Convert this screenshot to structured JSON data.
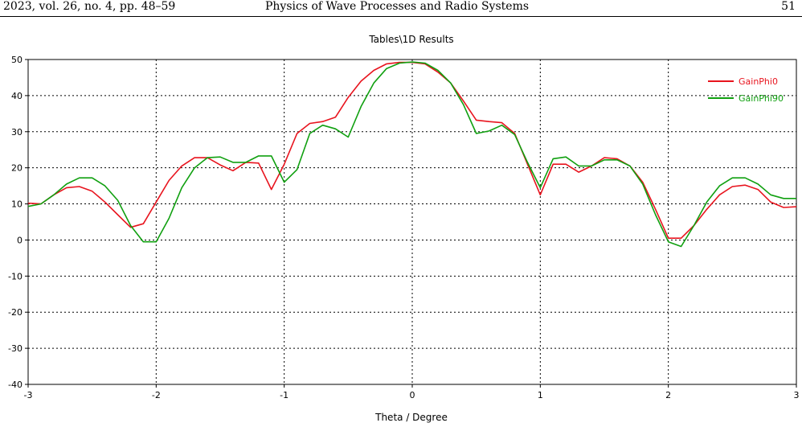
{
  "header": {
    "left": "2023, vol. 26, no. 4, pp. 48–59",
    "center": "Physics of Wave Processes and Radio Systems",
    "right": "51"
  },
  "chart_data": {
    "type": "line",
    "title": "Tables\\1D Results",
    "xlabel": "Theta / Degree",
    "ylabel": "",
    "xlim": [
      -3,
      3
    ],
    "ylim": [
      -40,
      50
    ],
    "xticks": [
      -3,
      -2,
      -1,
      0,
      1,
      2,
      3
    ],
    "yticks": [
      50,
      40,
      30,
      20,
      10,
      0,
      -10,
      -20,
      -30,
      -40
    ],
    "grid": true,
    "legend_position": "top-right",
    "series": [
      {
        "name": "GainPhi0",
        "color": "#e8141e",
        "x": [
          -3,
          -2.9,
          -2.8,
          -2.7,
          -2.6,
          -2.5,
          -2.4,
          -2.3,
          -2.2,
          -2.1,
          -2,
          -1.9,
          -1.8,
          -1.7,
          -1.6,
          -1.5,
          -1.4,
          -1.3,
          -1.2,
          -1.1,
          -1,
          -0.9,
          -0.8,
          -0.7,
          -0.6,
          -0.5,
          -0.4,
          -0.3,
          -0.2,
          -0.1,
          0,
          0.1,
          0.2,
          0.3,
          0.4,
          0.5,
          0.6,
          0.7,
          0.8,
          0.9,
          1,
          1.1,
          1.2,
          1.3,
          1.4,
          1.5,
          1.6,
          1.7,
          1.8,
          1.9,
          2,
          2.1,
          2.2,
          2.3,
          2.4,
          2.5,
          2.6,
          2.7,
          2.8,
          2.9,
          3
        ],
        "values": [
          10.2,
          10,
          12.5,
          14.5,
          14.8,
          13.5,
          10.5,
          7,
          3.5,
          4.5,
          10.5,
          16.5,
          20.5,
          22.8,
          22.8,
          20.8,
          19.2,
          21.5,
          21.3,
          14,
          21,
          29.5,
          32.3,
          32.8,
          34,
          39.5,
          44,
          47,
          48.8,
          49.2,
          49.2,
          48.8,
          46.5,
          43.5,
          38.5,
          33.2,
          32.8,
          32.5,
          29.5,
          21,
          12.5,
          21,
          21,
          18.8,
          20.5,
          22.8,
          22.5,
          20.5,
          16,
          8.5,
          0.5,
          0.5,
          4,
          8.5,
          12.5,
          14.8,
          15.2,
          14,
          10.5,
          9,
          9.2
        ]
      },
      {
        "name": "GainPhi90",
        "color": "#10a010",
        "x": [
          -3,
          -2.9,
          -2.8,
          -2.7,
          -2.6,
          -2.5,
          -2.4,
          -2.3,
          -2.2,
          -2.1,
          -2,
          -1.9,
          -1.8,
          -1.7,
          -1.6,
          -1.5,
          -1.4,
          -1.3,
          -1.2,
          -1.1,
          -1,
          -0.9,
          -0.8,
          -0.7,
          -0.6,
          -0.5,
          -0.4,
          -0.3,
          -0.2,
          -0.1,
          0,
          0.1,
          0.2,
          0.3,
          0.4,
          0.5,
          0.6,
          0.7,
          0.8,
          0.9,
          1,
          1.1,
          1.2,
          1.3,
          1.4,
          1.5,
          1.6,
          1.7,
          1.8,
          1.9,
          2,
          2.1,
          2.2,
          2.3,
          2.4,
          2.5,
          2.6,
          2.7,
          2.8,
          2.9,
          3
        ],
        "values": [
          9.3,
          10,
          12.5,
          15.5,
          17.2,
          17.2,
          15,
          11,
          4,
          -0.5,
          -0.5,
          6,
          14.5,
          20,
          22.8,
          23,
          21.5,
          21.5,
          23.3,
          23.3,
          16,
          19.5,
          29.5,
          31.8,
          30.8,
          28.5,
          37,
          43.5,
          47.5,
          49,
          49.3,
          49,
          47,
          43.5,
          37.5,
          29.5,
          30.2,
          31.8,
          29.2,
          21.5,
          14.5,
          22.5,
          23,
          20.5,
          20.5,
          22.2,
          22.2,
          20.5,
          15.5,
          7,
          -0.5,
          -1.8,
          4,
          10.5,
          15,
          17.2,
          17.2,
          15.5,
          12.5,
          11.5,
          11.5
        ]
      }
    ]
  }
}
